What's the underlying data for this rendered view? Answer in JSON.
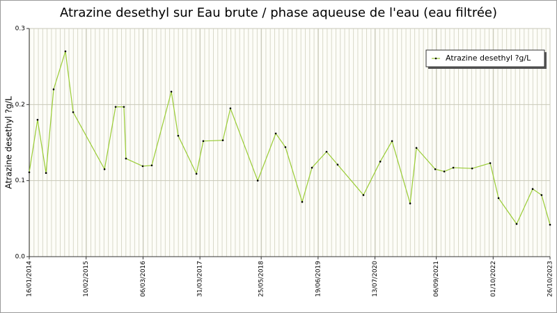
{
  "chart_data": {
    "type": "line",
    "title": "Atrazine desethyl sur Eau brute / phase aqueuse de l'eau (eau filtrée)",
    "y_label": "Atrazine desethyl ?g/L",
    "x": [
      "16/01/2014",
      "14/03/2014",
      "11/05/2014",
      "02/07/2014",
      "21/09/2014",
      "13/11/2014",
      "16/06/2015",
      "31/08/2015",
      "27/10/2015",
      "10/11/2015",
      "04/03/2016",
      "05/05/2016",
      "16/09/2016",
      "02/11/2016",
      "07/03/2017",
      "23/04/2017",
      "04/09/2017",
      "26/10/2017",
      "01/05/2018",
      "02/09/2018",
      "07/11/2018",
      "02/03/2019",
      "08/05/2019",
      "16/08/2019",
      "31/10/2019",
      "25/04/2020",
      "18/08/2020",
      "07/11/2020",
      "11/03/2021",
      "23/04/2021",
      "30/08/2021",
      "31/10/2021",
      "01/01/2022",
      "10/05/2022",
      "11/09/2022",
      "07/11/2022",
      "11/03/2023",
      "29/06/2023",
      "29/08/2023",
      "26/10/2023"
    ],
    "series": [
      {
        "name": "Atrazine desethyl ?g/L",
        "color": "#99cc33",
        "values": [
          0.111,
          0.18,
          0.11,
          0.22,
          0.27,
          0.19,
          0.115,
          0.197,
          0.197,
          0.129,
          0.119,
          0.12,
          0.217,
          0.159,
          0.109,
          0.152,
          0.153,
          0.195,
          0.1,
          0.162,
          0.144,
          0.072,
          0.117,
          0.138,
          0.121,
          0.081,
          0.125,
          0.152,
          0.07,
          0.143,
          0.115,
          0.112,
          0.117,
          0.116,
          0.123,
          0.077,
          0.043,
          0.089,
          0.081,
          0.042
        ]
      }
    ],
    "xlim": [
      "16/01/2014",
      "26/10/2023"
    ],
    "xticks": [
      "16/01/2014",
      "10/02/2015",
      "06/03/2016",
      "31/03/2017",
      "25/05/2018",
      "19/06/2019",
      "13/07/2020",
      "06/09/2021",
      "01/10/2022",
      "26/10/2023"
    ],
    "ylim": [
      0,
      0.3
    ],
    "yticks": [
      {
        "value": 0,
        "label": "0.0"
      },
      0.1,
      0.2,
      0.3
    ],
    "grid": true,
    "legend": "top-right"
  }
}
